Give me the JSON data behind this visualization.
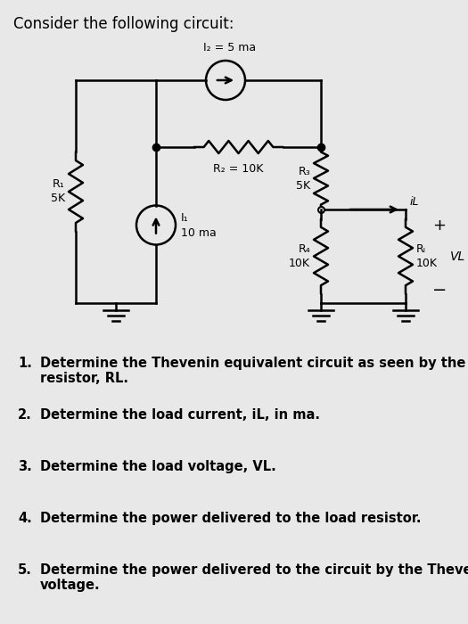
{
  "title": "Consider the following circuit:",
  "bg_color": "#e8e8e8",
  "questions": [
    [
      "1.",
      "Determine the Thevenin equivalent circuit as seen by the load\nresistor, RL."
    ],
    [
      "2.",
      "Determine the load current, iL, in ma."
    ],
    [
      "3.",
      "Determine the load voltage, VL."
    ],
    [
      "4.",
      "Determine the power delivered to the load resistor."
    ],
    [
      "5.",
      "Determine the power delivered to the circuit by the Thevenin\nvoltage."
    ]
  ],
  "labels": {
    "I2": "I₂ = 5 ma",
    "R2": "R₂ = 10K",
    "R1_top": "R₁",
    "R1_bot": "5K",
    "I1_label": "I₁",
    "I1_val": "10 ma",
    "R3_top": "R₃",
    "R3_bot": "5K",
    "R4_top": "R₄",
    "R4_bot": "10K",
    "RL_top": "Rₗ",
    "RL_bot": "10K",
    "iL": "iL",
    "VL": "VL",
    "plus": "+",
    "minus": "−"
  }
}
